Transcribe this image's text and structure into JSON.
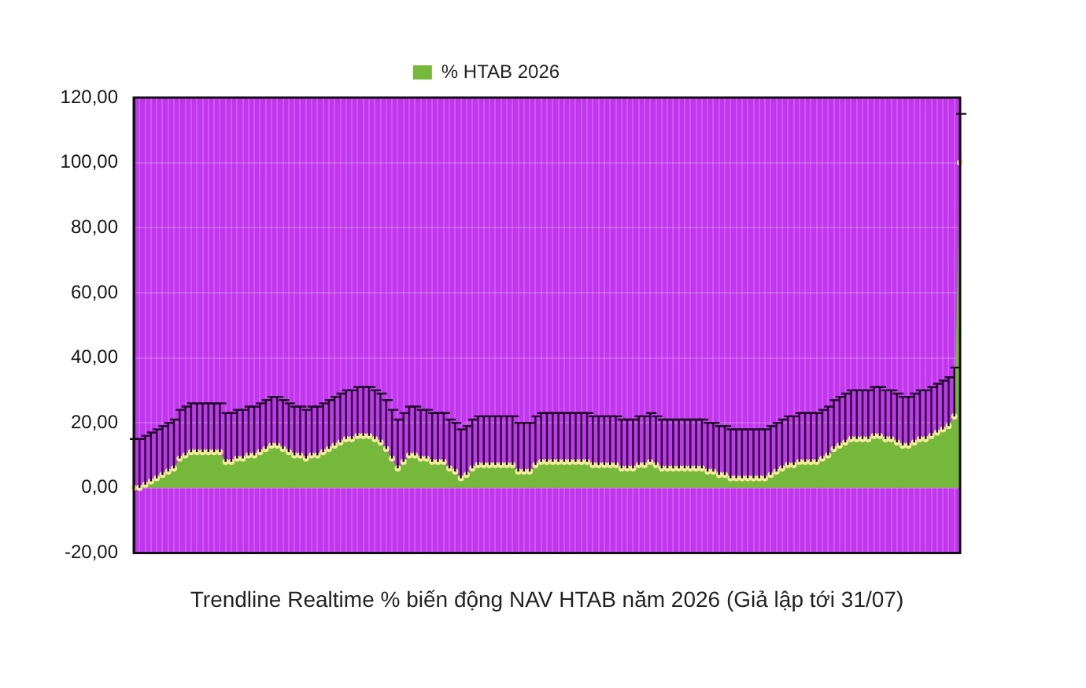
{
  "chart_data": {
    "type": "area",
    "xlabel": "Trendline Realtime % biến động NAV HTAB năm 2026 (Giả lập tới 31/07)",
    "categories": [
      null,
      null,
      null,
      null,
      null,
      null,
      null,
      null,
      null,
      null,
      null,
      null,
      null,
      null,
      null,
      null,
      null,
      null,
      null,
      null,
      null,
      null,
      null,
      null,
      null,
      null,
      null,
      null,
      null,
      null,
      null,
      null,
      null,
      null,
      null,
      null,
      null,
      null,
      null,
      null,
      null,
      null,
      null,
      null,
      null,
      null,
      null,
      null,
      null,
      null,
      null,
      null,
      null,
      null,
      null,
      null,
      null,
      null,
      null,
      null,
      null,
      null,
      null,
      null,
      null,
      null,
      null,
      null,
      null,
      null,
      null,
      null,
      null,
      null,
      null,
      null,
      null,
      null,
      null,
      null,
      null,
      null,
      null,
      null,
      null,
      null,
      null,
      null,
      null,
      null,
      null,
      null,
      null,
      null,
      null,
      null,
      null,
      null,
      null,
      null,
      null,
      null,
      null,
      null,
      null,
      null,
      null,
      null,
      null,
      null,
      null,
      null,
      null,
      null,
      null,
      null,
      null,
      null,
      null,
      null,
      null,
      null,
      null,
      null,
      null,
      null,
      null,
      null,
      null,
      null,
      null,
      null,
      null,
      null,
      null,
      null,
      null,
      null,
      null,
      null,
      null,
      null,
      null,
      null,
      null
    ],
    "series": [
      {
        "name": "% HTAB 2026",
        "color": "#76b83b",
        "values": [
          0,
          0,
          1,
          2,
          3,
          4,
          5,
          6,
          9,
          10,
          11,
          11,
          11,
          11,
          11,
          11,
          8,
          8,
          9,
          9,
          10,
          10,
          11,
          12,
          13,
          13,
          12,
          11,
          10,
          10,
          9,
          10,
          10,
          11,
          12,
          13,
          14,
          15,
          15,
          16,
          16,
          16,
          15,
          14,
          12,
          9,
          6,
          8,
          10,
          10,
          9,
          9,
          8,
          8,
          8,
          6,
          5,
          3,
          4,
          6,
          7,
          7,
          7,
          7,
          7,
          7,
          7,
          5,
          5,
          5,
          7,
          8,
          8,
          8,
          8,
          8,
          8,
          8,
          8,
          8,
          7,
          7,
          7,
          7,
          7,
          6,
          6,
          6,
          7,
          7,
          8,
          7,
          6,
          6,
          6,
          6,
          6,
          6,
          6,
          6,
          5,
          5,
          4,
          4,
          3,
          3,
          3,
          3,
          3,
          3,
          3,
          4,
          5,
          6,
          7,
          7,
          8,
          8,
          8,
          8,
          9,
          10,
          12,
          13,
          14,
          15,
          15,
          15,
          15,
          16,
          16,
          15,
          15,
          14,
          13,
          13,
          14,
          15,
          15,
          16,
          17,
          18,
          19,
          22,
          100
        ],
        "errors": [
          [
            0,
            15
          ],
          [
            0,
            15
          ],
          [
            1,
            16
          ],
          [
            2,
            17
          ],
          [
            3,
            18
          ],
          [
            4,
            19
          ],
          [
            5,
            20
          ],
          [
            6,
            21
          ],
          [
            9,
            24
          ],
          [
            10,
            25
          ],
          [
            11,
            26
          ],
          [
            11,
            26
          ],
          [
            11,
            26
          ],
          [
            11,
            26
          ],
          [
            11,
            26
          ],
          [
            11,
            26
          ],
          [
            8,
            23
          ],
          [
            8,
            23
          ],
          [
            9,
            24
          ],
          [
            9,
            24
          ],
          [
            10,
            25
          ],
          [
            10,
            25
          ],
          [
            11,
            26
          ],
          [
            12,
            27
          ],
          [
            13,
            28
          ],
          [
            13,
            28
          ],
          [
            12,
            27
          ],
          [
            11,
            26
          ],
          [
            10,
            25
          ],
          [
            10,
            25
          ],
          [
            9,
            24
          ],
          [
            10,
            25
          ],
          [
            10,
            25
          ],
          [
            11,
            26
          ],
          [
            12,
            27
          ],
          [
            13,
            28
          ],
          [
            14,
            29
          ],
          [
            15,
            30
          ],
          [
            15,
            30
          ],
          [
            16,
            31
          ],
          [
            16,
            31
          ],
          [
            16,
            31
          ],
          [
            15,
            30
          ],
          [
            14,
            29
          ],
          [
            12,
            27
          ],
          [
            9,
            24
          ],
          [
            6,
            21
          ],
          [
            8,
            23
          ],
          [
            10,
            25
          ],
          [
            10,
            25
          ],
          [
            9,
            24
          ],
          [
            9,
            24
          ],
          [
            8,
            23
          ],
          [
            8,
            23
          ],
          [
            8,
            23
          ],
          [
            6,
            21
          ],
          [
            5,
            20
          ],
          [
            3,
            18
          ],
          [
            4,
            19
          ],
          [
            6,
            21
          ],
          [
            7,
            22
          ],
          [
            7,
            22
          ],
          [
            7,
            22
          ],
          [
            7,
            22
          ],
          [
            7,
            22
          ],
          [
            7,
            22
          ],
          [
            7,
            22
          ],
          [
            5,
            20
          ],
          [
            5,
            20
          ],
          [
            5,
            20
          ],
          [
            7,
            22
          ],
          [
            8,
            23
          ],
          [
            8,
            23
          ],
          [
            8,
            23
          ],
          [
            8,
            23
          ],
          [
            8,
            23
          ],
          [
            8,
            23
          ],
          [
            8,
            23
          ],
          [
            8,
            23
          ],
          [
            8,
            23
          ],
          [
            7,
            22
          ],
          [
            7,
            22
          ],
          [
            7,
            22
          ],
          [
            7,
            22
          ],
          [
            7,
            22
          ],
          [
            6,
            21
          ],
          [
            6,
            21
          ],
          [
            6,
            21
          ],
          [
            7,
            22
          ],
          [
            7,
            22
          ],
          [
            8,
            23
          ],
          [
            7,
            22
          ],
          [
            6,
            21
          ],
          [
            6,
            21
          ],
          [
            6,
            21
          ],
          [
            6,
            21
          ],
          [
            6,
            21
          ],
          [
            6,
            21
          ],
          [
            6,
            21
          ],
          [
            6,
            21
          ],
          [
            5,
            20
          ],
          [
            5,
            20
          ],
          [
            4,
            19
          ],
          [
            4,
            19
          ],
          [
            3,
            18
          ],
          [
            3,
            18
          ],
          [
            3,
            18
          ],
          [
            3,
            18
          ],
          [
            3,
            18
          ],
          [
            3,
            18
          ],
          [
            3,
            18
          ],
          [
            4,
            19
          ],
          [
            5,
            20
          ],
          [
            6,
            21
          ],
          [
            7,
            22
          ],
          [
            7,
            22
          ],
          [
            8,
            23
          ],
          [
            8,
            23
          ],
          [
            8,
            23
          ],
          [
            8,
            23
          ],
          [
            9,
            24
          ],
          [
            10,
            25
          ],
          [
            12,
            27
          ],
          [
            13,
            28
          ],
          [
            14,
            29
          ],
          [
            15,
            30
          ],
          [
            15,
            30
          ],
          [
            15,
            30
          ],
          [
            15,
            30
          ],
          [
            16,
            31
          ],
          [
            16,
            31
          ],
          [
            15,
            30
          ],
          [
            15,
            30
          ],
          [
            14,
            29
          ],
          [
            13,
            28
          ],
          [
            13,
            28
          ],
          [
            14,
            29
          ],
          [
            15,
            30
          ],
          [
            15,
            30
          ],
          [
            16,
            31
          ],
          [
            17,
            32
          ],
          [
            18,
            33
          ],
          [
            19,
            34
          ],
          [
            22,
            37
          ],
          [
            100,
            115
          ]
        ]
      }
    ],
    "ylim": [
      -20,
      120
    ],
    "yticks": [
      {
        "value": -20,
        "label": "-20,00"
      },
      {
        "value": 0,
        "label": "0,00"
      },
      {
        "value": 20,
        "label": "20,00"
      },
      {
        "value": 40,
        "label": "40,00"
      },
      {
        "value": 60,
        "label": "60,00"
      },
      {
        "value": 80,
        "label": "80,00"
      },
      {
        "value": 100,
        "label": "100,00"
      },
      {
        "value": 120,
        "label": "120,00"
      }
    ],
    "tick_labels": "y",
    "grid": true,
    "legend": "top",
    "marker": "circle"
  }
}
